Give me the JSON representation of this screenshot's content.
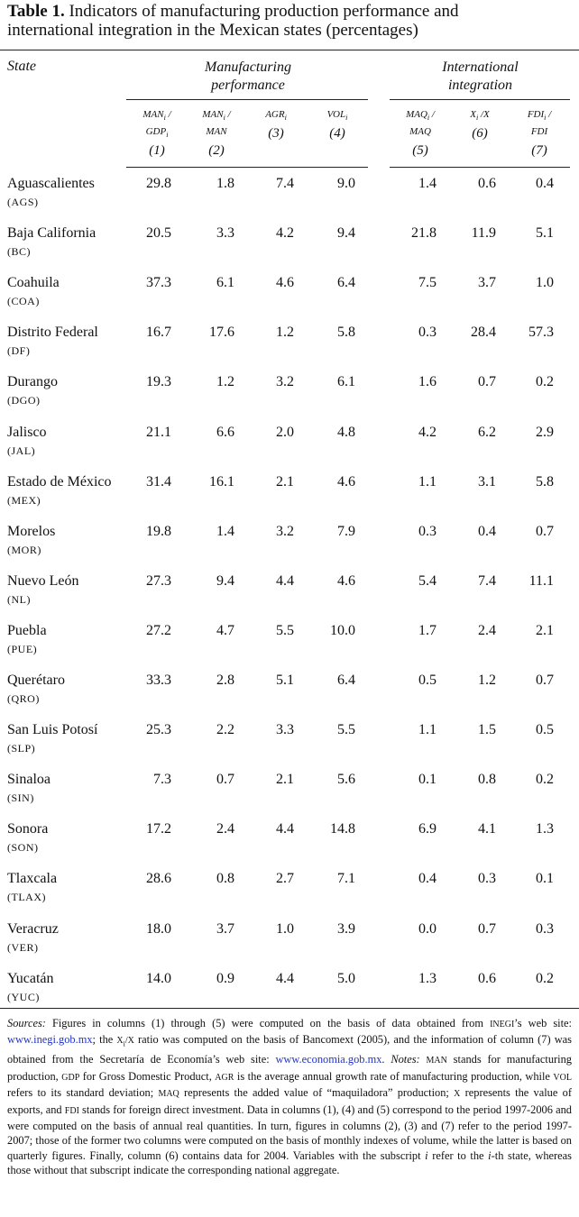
{
  "title": {
    "label": "Table 1.",
    "text": "Indicators of manufacturing production performance and international integration in the Mexican states (percentages)"
  },
  "header": {
    "state": "State",
    "group1": "Manufacturing performance",
    "group2": "International integration"
  },
  "columns": [
    [
      [
        {
          "t": "MAN"
        },
        {
          "t": "i",
          "sub": true
        },
        {
          "t": " /"
        }
      ],
      [
        {
          "t": "GDP"
        },
        {
          "t": "i",
          "sub": true
        }
      ],
      [
        {
          "t": "(1)"
        }
      ]
    ],
    [
      [
        {
          "t": "MAN"
        },
        {
          "t": "i",
          "sub": true
        },
        {
          "t": " /"
        }
      ],
      [
        {
          "t": "MAN"
        }
      ],
      [
        {
          "t": "(2)"
        }
      ]
    ],
    [
      [
        {
          "t": "AGR"
        },
        {
          "t": "i",
          "sub": true
        }
      ],
      [
        {
          "t": "(3)"
        }
      ]
    ],
    [
      [
        {
          "t": "VOL"
        },
        {
          "t": "i",
          "sub": true
        }
      ],
      [
        {
          "t": "(4)"
        }
      ]
    ],
    [
      [
        {
          "t": "MAQ"
        },
        {
          "t": "i",
          "sub": true
        },
        {
          "t": " /"
        }
      ],
      [
        {
          "t": "MAQ"
        }
      ],
      [
        {
          "t": "(5)"
        }
      ]
    ],
    [
      [
        {
          "t": "X"
        },
        {
          "t": "i",
          "sub": true
        },
        {
          "t": " /X"
        }
      ],
      [
        {
          "t": "(6)"
        }
      ]
    ],
    [
      [
        {
          "t": "FDI"
        },
        {
          "t": "i",
          "sub": true
        },
        {
          "t": " /"
        }
      ],
      [
        {
          "t": "FDI"
        }
      ],
      [
        {
          "t": "(7)"
        }
      ]
    ]
  ],
  "rows": [
    {
      "state": "Aguascalientes",
      "abbr": "(AGS)",
      "values": [
        "29.8",
        "1.8",
        "7.4",
        "9.0",
        "1.4",
        "0.6",
        "0.4"
      ]
    },
    {
      "state": "Baja California",
      "abbr": "(BC)",
      "values": [
        "20.5",
        "3.3",
        "4.2",
        "9.4",
        "21.8",
        "11.9",
        "5.1"
      ]
    },
    {
      "state": "Coahuila",
      "abbr": "(COA)",
      "values": [
        "37.3",
        "6.1",
        "4.6",
        "6.4",
        "7.5",
        "3.7",
        "1.0"
      ]
    },
    {
      "state": "Distrito Federal",
      "abbr": "(DF)",
      "values": [
        "16.7",
        "17.6",
        "1.2",
        "5.8",
        "0.3",
        "28.4",
        "57.3"
      ]
    },
    {
      "state": "Durango",
      "abbr": "(DGO)",
      "values": [
        "19.3",
        "1.2",
        "3.2",
        "6.1",
        "1.6",
        "0.7",
        "0.2"
      ]
    },
    {
      "state": "Jalisco",
      "abbr": "(JAL)",
      "values": [
        "21.1",
        "6.6",
        "2.0",
        "4.8",
        "4.2",
        "6.2",
        "2.9"
      ]
    },
    {
      "state": "Estado de México",
      "abbr": "(MEX)",
      "values": [
        "31.4",
        "16.1",
        "2.1",
        "4.6",
        "1.1",
        "3.1",
        "5.8"
      ]
    },
    {
      "state": "Morelos",
      "abbr": "(MOR)",
      "values": [
        "19.8",
        "1.4",
        "3.2",
        "7.9",
        "0.3",
        "0.4",
        "0.7"
      ]
    },
    {
      "state": "Nuevo León",
      "abbr": "(NL)",
      "values": [
        "27.3",
        "9.4",
        "4.4",
        "4.6",
        "5.4",
        "7.4",
        "11.1"
      ]
    },
    {
      "state": "Puebla",
      "abbr": "(PUE)",
      "values": [
        "27.2",
        "4.7",
        "5.5",
        "10.0",
        "1.7",
        "2.4",
        "2.1"
      ]
    },
    {
      "state": "Querétaro",
      "abbr": "(QRO)",
      "values": [
        "33.3",
        "2.8",
        "5.1",
        "6.4",
        "0.5",
        "1.2",
        "0.7"
      ]
    },
    {
      "state": "San Luis Potosí",
      "abbr": "(SLP)",
      "values": [
        "25.3",
        "2.2",
        "3.3",
        "5.5",
        "1.1",
        "1.5",
        "0.5"
      ]
    },
    {
      "state": "Sinaloa",
      "abbr": "(SIN)",
      "values": [
        "7.3",
        "0.7",
        "2.1",
        "5.6",
        "0.1",
        "0.8",
        "0.2"
      ]
    },
    {
      "state": "Sonora",
      "abbr": "(SON)",
      "values": [
        "17.2",
        "2.4",
        "4.4",
        "14.8",
        "6.9",
        "4.1",
        "1.3"
      ]
    },
    {
      "state": "Tlaxcala",
      "abbr": "(TLAX)",
      "values": [
        "28.6",
        "0.8",
        "2.7",
        "7.1",
        "0.4",
        "0.3",
        "0.1"
      ]
    },
    {
      "state": "Veracruz",
      "abbr": "(VER)",
      "values": [
        "18.0",
        "3.7",
        "1.0",
        "3.9",
        "0.0",
        "0.7",
        "0.3"
      ]
    },
    {
      "state": "Yucatán",
      "abbr": "(YUC)",
      "values": [
        "14.0",
        "0.9",
        "4.4",
        "5.0",
        "1.3",
        "0.6",
        "0.2"
      ]
    }
  ],
  "footnote": [
    {
      "t": "Sources:",
      "style": "italic"
    },
    {
      "t": " Figures in columns (1) through (5) were computed on the basis of data obtained from "
    },
    {
      "t": "INEGI",
      "style": "sc"
    },
    {
      "t": "’s web site: "
    },
    {
      "t": "www.inegi.gob.mx",
      "style": "link"
    },
    {
      "t": "; the "
    },
    {
      "t": "X",
      "style": "sc"
    },
    {
      "t": "i",
      "style": "sub"
    },
    {
      "t": "/X",
      "style": "sc"
    },
    {
      "t": " ratio was computed on the basis of Bancomext (2005), and the information of column (7) was obtained from the Secretaría de Economía’s web site: "
    },
    {
      "t": "www.economia.gob.mx",
      "style": "link"
    },
    {
      "t": ". "
    },
    {
      "t": "Notes:",
      "style": "italic"
    },
    {
      "t": " "
    },
    {
      "t": "MAN",
      "style": "sc"
    },
    {
      "t": " stands for manufacturing production, "
    },
    {
      "t": "GDP",
      "style": "sc"
    },
    {
      "t": " for Gross Domestic Product, "
    },
    {
      "t": "AGR",
      "style": "sc"
    },
    {
      "t": " is the average annual growth rate of manufacturing production, while "
    },
    {
      "t": "VOL",
      "style": "sc"
    },
    {
      "t": " refers to its standard deviation; "
    },
    {
      "t": "MAQ",
      "style": "sc"
    },
    {
      "t": " represents the added value of “maquiladora” production; "
    },
    {
      "t": "X",
      "style": "sc"
    },
    {
      "t": " represents the value of exports, and "
    },
    {
      "t": "FDI",
      "style": "sc"
    },
    {
      "t": " stands for foreign direct investment. Data in columns (1), (4) and (5) correspond to the period 1997-2006 and were computed on the basis of annual real quantities. In turn, figures in columns (2), (3) and (7) refer to the period 1997-2007; those of the former two columns were computed on the basis of monthly indexes of volume, while the latter is based on quarterly figures. Finally, column (6) contains data for 2004. Variables with the subscript "
    },
    {
      "t": "i",
      "style": "italic"
    },
    {
      "t": " refer to the "
    },
    {
      "t": "i",
      "style": "italic"
    },
    {
      "t": "-th state, whereas those without that subscript indicate the corresponding national aggregate."
    }
  ]
}
